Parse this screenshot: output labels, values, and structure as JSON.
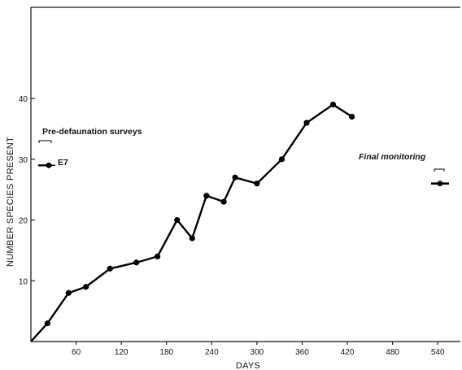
{
  "chart_data": {
    "type": "line",
    "title": "",
    "xlabel": "DAYS",
    "ylabel": "NUMBER SPECIES PRESENT",
    "xlim": [
      0,
      570
    ],
    "ylim": [
      0,
      55
    ],
    "x_ticks": [
      60,
      120,
      180,
      240,
      300,
      360,
      420,
      480,
      540
    ],
    "x_tick_labels": [
      "60",
      "120",
      "180",
      "240",
      "300",
      "360",
      "420",
      "480",
      "540"
    ],
    "y_ticks": [
      10,
      20,
      30,
      40
    ],
    "y_tick_labels": [
      "10",
      "20",
      "30",
      "40"
    ],
    "series": [
      {
        "name": "E7",
        "x": [
          0,
          22,
          50,
          73,
          105,
          140,
          168,
          194,
          214,
          233,
          256,
          271,
          300,
          333,
          366,
          401,
          426
        ],
        "y": [
          0,
          3,
          8,
          9,
          12,
          13,
          14,
          20,
          17,
          24,
          23,
          27,
          26,
          30,
          36,
          39,
          37
        ]
      }
    ],
    "pre_defaunation": {
      "label": "Pre-defaunation surveys",
      "value": 29
    },
    "final_monitoring": {
      "label": "Final monitoring",
      "x": 543,
      "value": 26
    },
    "grid": false
  }
}
